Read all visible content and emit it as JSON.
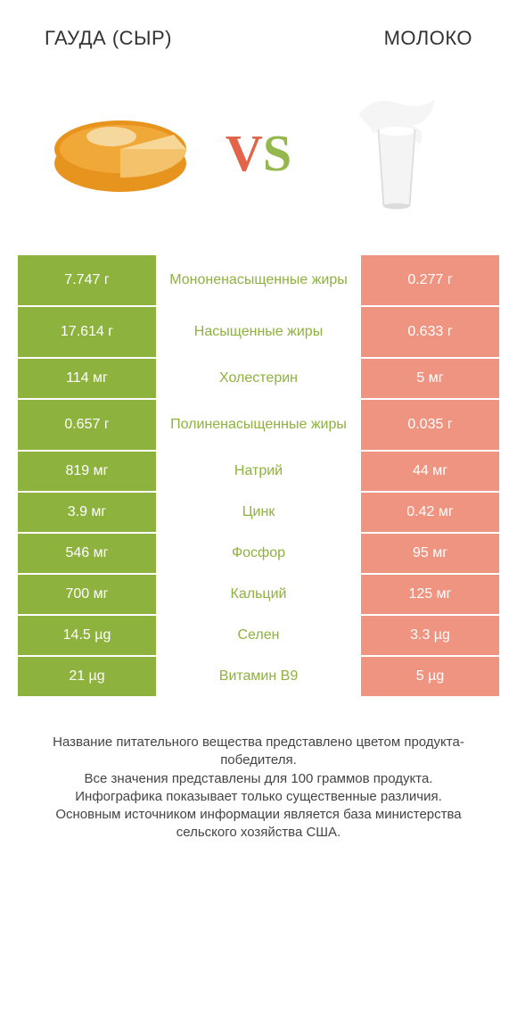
{
  "header": {
    "left_title": "ГАУДА (СЫР)",
    "right_title": "МОЛОКО"
  },
  "vs": {
    "v": "V",
    "s": "S"
  },
  "colors": {
    "left_strong": "#8eb23e",
    "left_weak": "#b0cc6f",
    "right_strong": "#e86a4f",
    "right_weak": "#ef9480",
    "mid_left": "#e86a4f",
    "mid_right": "#8eb23e",
    "cheese_rind": "#e7941f",
    "cheese_inner": "#f3c26a",
    "milk_white": "#f4f4f4",
    "milk_shadow": "#dcdcdc"
  },
  "rows": [
    {
      "left": "7.747 г",
      "mid": "Мононенасыщенные жиры",
      "right": "0.277 г",
      "winner": "left",
      "tall": true
    },
    {
      "left": "17.614 г",
      "mid": "Насыщенные жиры",
      "right": "0.633 г",
      "winner": "left",
      "tall": true
    },
    {
      "left": "114 мг",
      "mid": "Холестерин",
      "right": "5 мг",
      "winner": "left",
      "tall": false
    },
    {
      "left": "0.657 г",
      "mid": "Полиненасыщенные жиры",
      "right": "0.035 г",
      "winner": "left",
      "tall": true
    },
    {
      "left": "819 мг",
      "mid": "Натрий",
      "right": "44 мг",
      "winner": "left",
      "tall": false
    },
    {
      "left": "3.9 мг",
      "mid": "Цинк",
      "right": "0.42 мг",
      "winner": "left",
      "tall": false
    },
    {
      "left": "546 мг",
      "mid": "Фосфор",
      "right": "95 мг",
      "winner": "left",
      "tall": false
    },
    {
      "left": "700 мг",
      "mid": "Кальций",
      "right": "125 мг",
      "winner": "left",
      "tall": false
    },
    {
      "left": "14.5 µg",
      "mid": "Селен",
      "right": "3.3 µg",
      "winner": "left",
      "tall": false
    },
    {
      "left": "21 µg",
      "mid": "Витамин B9",
      "right": "5 µg",
      "winner": "left",
      "tall": false
    }
  ],
  "footnote": {
    "l1": "Название питательного вещества представлено цветом продукта-победителя.",
    "l2": "Все значения представлены для 100 граммов продукта.",
    "l3": "Инфографика показывает только существенные различия.",
    "l4": "Основным источником информации является база министерства сельского хозяйства США."
  }
}
